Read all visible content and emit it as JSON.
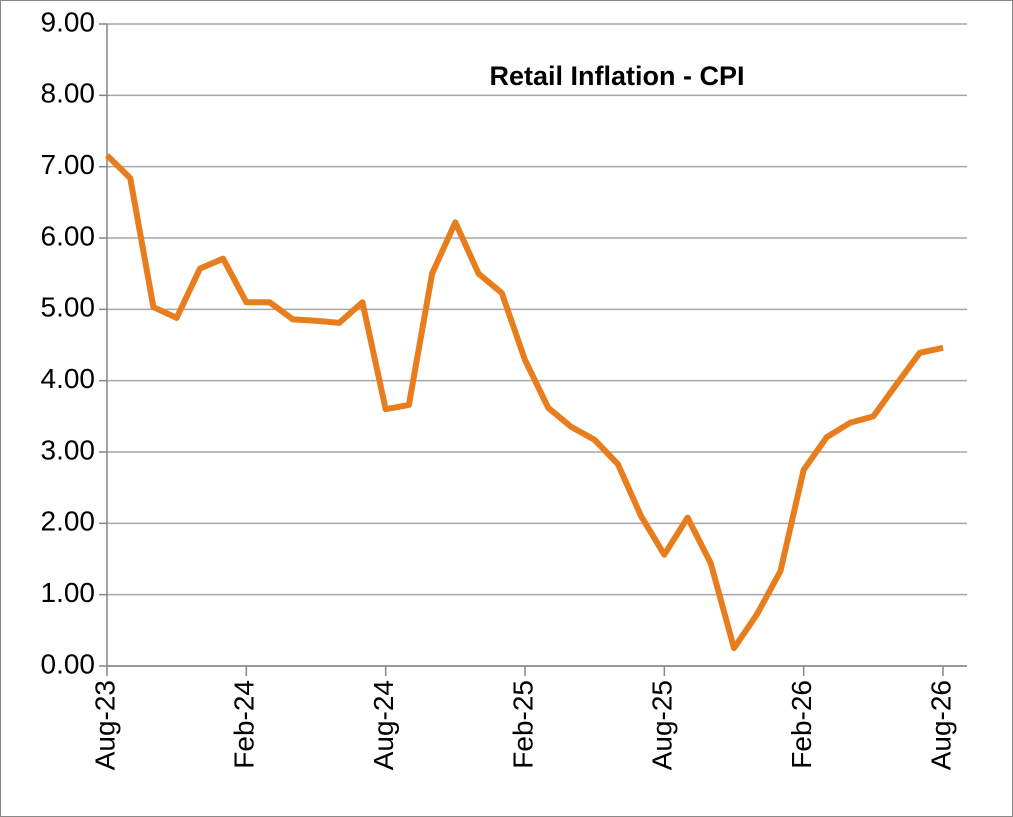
{
  "chart_data": {
    "type": "line",
    "title": "Retail Inflation - CPI",
    "categories": [
      "Aug-23",
      null,
      null,
      null,
      null,
      null,
      "Feb-24",
      null,
      null,
      null,
      null,
      null,
      "Aug-24",
      null,
      null,
      null,
      null,
      null,
      "Feb-25",
      null,
      null,
      null,
      null,
      null,
      "Aug-25",
      null,
      null,
      null,
      null,
      null,
      "Feb-26",
      null,
      null,
      null,
      null,
      null,
      "Aug-26"
    ],
    "values": [
      7.16,
      6.84,
      5.03,
      4.88,
      5.57,
      5.71,
      5.1,
      5.1,
      4.86,
      4.84,
      4.81,
      5.1,
      3.6,
      3.66,
      5.5,
      6.22,
      5.5,
      5.23,
      4.29,
      3.62,
      3.35,
      3.17,
      2.83,
      2.1,
      1.56,
      2.08,
      1.44,
      0.25,
      0.73,
      1.33,
      2.75,
      3.21,
      3.41,
      3.5,
      3.95,
      4.39,
      4.46
    ],
    "color": "#e87d1e",
    "ylim": [
      0,
      9
    ],
    "yticks": [
      {
        "value": 0,
        "label": "0.00"
      },
      {
        "value": 1,
        "label": "1.00"
      },
      {
        "value": 2,
        "label": "2.00"
      },
      {
        "value": 3,
        "label": "3.00"
      },
      {
        "value": 4,
        "label": "4.00"
      },
      {
        "value": 5,
        "label": "5.00"
      },
      {
        "value": 6,
        "label": "6.00"
      },
      {
        "value": 7,
        "label": "7.00"
      },
      {
        "value": 8,
        "label": "8.00"
      },
      {
        "value": 9,
        "label": "9.00"
      }
    ],
    "grid": true
  }
}
